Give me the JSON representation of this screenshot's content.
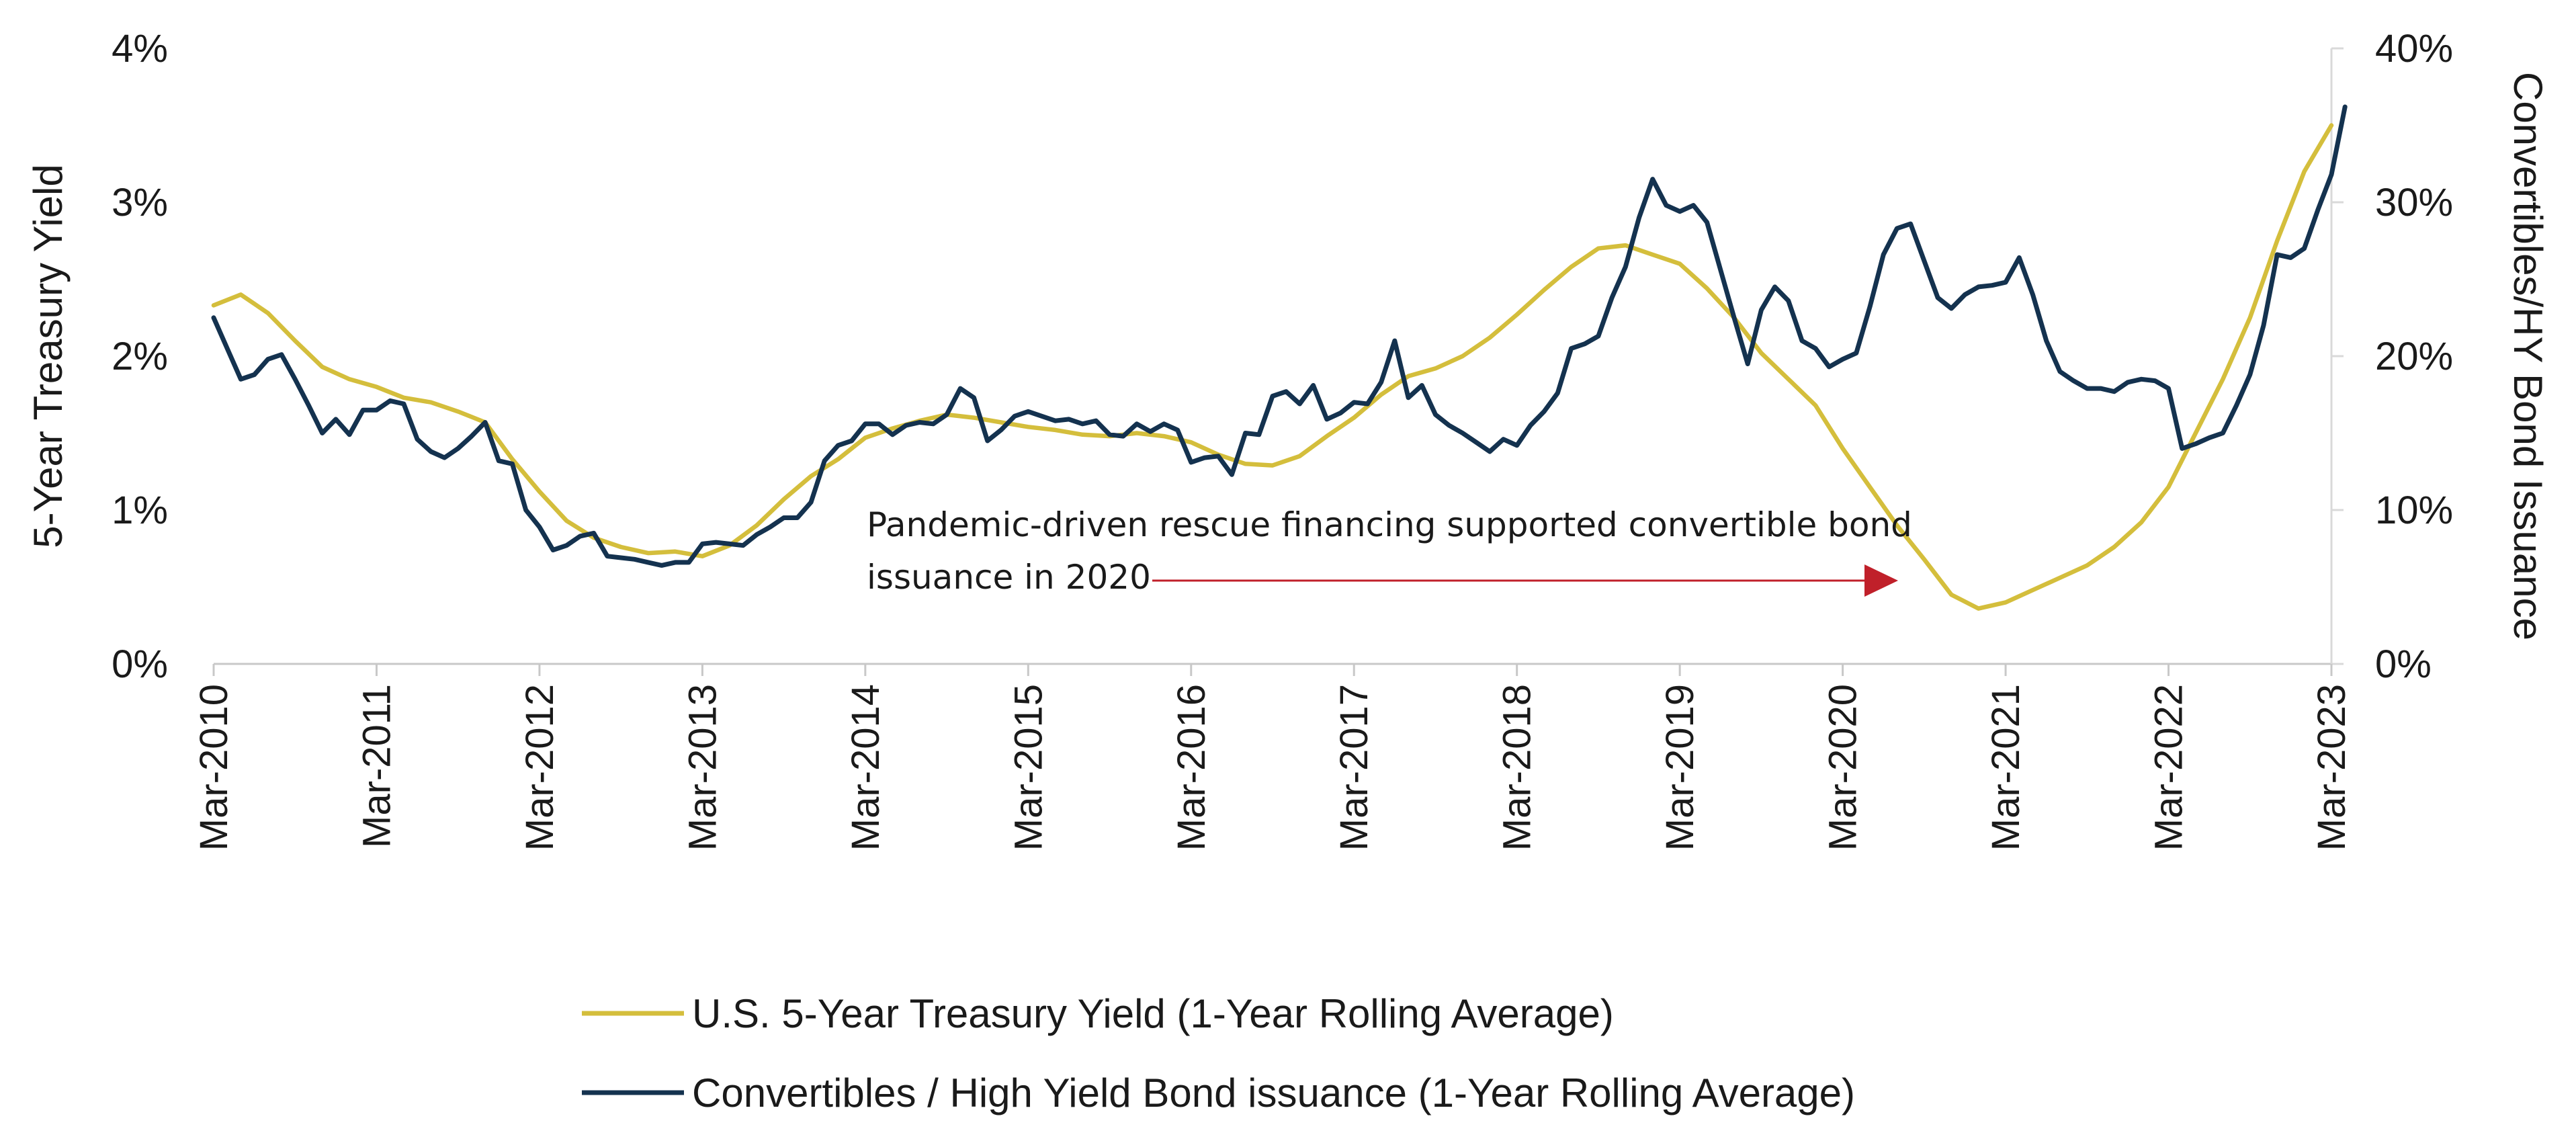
{
  "chart_data": {
    "type": "line",
    "y_left": {
      "label": "5-Year Treasury Yield",
      "min": 0,
      "max": 4,
      "ticks": [
        "0%",
        "1%",
        "2%",
        "3%",
        "4%"
      ]
    },
    "y_right": {
      "label": "Convertibles/HY Bond Issuance",
      "min": 0,
      "max": 40,
      "ticks": [
        "0%",
        "10%",
        "20%",
        "30%",
        "40%"
      ]
    },
    "x_axis": {
      "start": "Mar-2010",
      "end": "Mar-2023",
      "tick_labels": [
        "Mar-2010",
        "Mar-2011",
        "Mar-2012",
        "Mar-2013",
        "Mar-2014",
        "Mar-2015",
        "Mar-2016",
        "Mar-2017",
        "Mar-2018",
        "Mar-2019",
        "Mar-2020",
        "Mar-2021",
        "Mar-2022",
        "Mar-2023"
      ]
    },
    "series": [
      {
        "name": "U.S. 5-Year Treasury Yield (1-Year Rolling Average)",
        "axis": "left",
        "unit": "%",
        "color": "#D4BE3C",
        "points": [
          [
            "Mar-2010",
            2.33
          ],
          [
            "May-2010",
            2.4
          ],
          [
            "Jul-2010",
            2.28
          ],
          [
            "Sep-2010",
            2.1
          ],
          [
            "Nov-2010",
            1.93
          ],
          [
            "Jan-2011",
            1.85
          ],
          [
            "Mar-2011",
            1.8
          ],
          [
            "May-2011",
            1.73
          ],
          [
            "Jul-2011",
            1.7
          ],
          [
            "Sep-2011",
            1.64
          ],
          [
            "Nov-2011",
            1.57
          ],
          [
            "Jan-2012",
            1.33
          ],
          [
            "Mar-2012",
            1.12
          ],
          [
            "May-2012",
            0.93
          ],
          [
            "Jul-2012",
            0.82
          ],
          [
            "Sep-2012",
            0.76
          ],
          [
            "Nov-2012",
            0.72
          ],
          [
            "Jan-2013",
            0.73
          ],
          [
            "Mar-2013",
            0.7
          ],
          [
            "May-2013",
            0.77
          ],
          [
            "Jul-2013",
            0.9
          ],
          [
            "Sep-2013",
            1.07
          ],
          [
            "Nov-2013",
            1.22
          ],
          [
            "Jan-2014",
            1.33
          ],
          [
            "Mar-2014",
            1.47
          ],
          [
            "May-2014",
            1.53
          ],
          [
            "Jul-2014",
            1.58
          ],
          [
            "Sep-2014",
            1.62
          ],
          [
            "Nov-2014",
            1.6
          ],
          [
            "Jan-2015",
            1.57
          ],
          [
            "Mar-2015",
            1.54
          ],
          [
            "May-2015",
            1.52
          ],
          [
            "Jul-2015",
            1.49
          ],
          [
            "Sep-2015",
            1.48
          ],
          [
            "Nov-2015",
            1.5
          ],
          [
            "Jan-2016",
            1.48
          ],
          [
            "Mar-2016",
            1.44
          ],
          [
            "May-2016",
            1.36
          ],
          [
            "Jul-2016",
            1.3
          ],
          [
            "Sep-2016",
            1.29
          ],
          [
            "Nov-2016",
            1.35
          ],
          [
            "Jan-2017",
            1.48
          ],
          [
            "Mar-2017",
            1.6
          ],
          [
            "May-2017",
            1.75
          ],
          [
            "Jul-2017",
            1.87
          ],
          [
            "Sep-2017",
            1.92
          ],
          [
            "Nov-2017",
            2.0
          ],
          [
            "Jan-2018",
            2.12
          ],
          [
            "Mar-2018",
            2.27
          ],
          [
            "May-2018",
            2.43
          ],
          [
            "Jul-2018",
            2.58
          ],
          [
            "Sep-2018",
            2.7
          ],
          [
            "Nov-2018",
            2.72
          ],
          [
            "Jan-2019",
            2.66
          ],
          [
            "Mar-2019",
            2.6
          ],
          [
            "May-2019",
            2.44
          ],
          [
            "Jul-2019",
            2.25
          ],
          [
            "Sep-2019",
            2.02
          ],
          [
            "Nov-2019",
            1.85
          ],
          [
            "Jan-2020",
            1.68
          ],
          [
            "Mar-2020",
            1.4
          ],
          [
            "May-2020",
            1.15
          ],
          [
            "Jul-2020",
            0.9
          ],
          [
            "Sep-2020",
            0.68
          ],
          [
            "Nov-2020",
            0.45
          ],
          [
            "Jan-2021",
            0.36
          ],
          [
            "Mar-2021",
            0.4
          ],
          [
            "May-2021",
            0.48
          ],
          [
            "Jul-2021",
            0.56
          ],
          [
            "Sep-2021",
            0.64
          ],
          [
            "Nov-2021",
            0.76
          ],
          [
            "Jan-2022",
            0.92
          ],
          [
            "Mar-2022",
            1.15
          ],
          [
            "May-2022",
            1.5
          ],
          [
            "Jul-2022",
            1.85
          ],
          [
            "Sep-2022",
            2.25
          ],
          [
            "Nov-2022",
            2.75
          ],
          [
            "Jan-2023",
            3.2
          ],
          [
            "Mar-2023",
            3.5
          ]
        ]
      },
      {
        "name": "Convertibles / High Yield Bond issuance (1-Year Rolling Average)",
        "axis": "right",
        "unit": "%",
        "color": "#14324F",
        "points": [
          [
            "Mar-2010",
            22.5
          ],
          [
            "Apr-2010",
            20.5
          ],
          [
            "May-2010",
            18.5
          ],
          [
            "Jun-2010",
            18.8
          ],
          [
            "Jul-2010",
            19.8
          ],
          [
            "Aug-2010",
            20.1
          ],
          [
            "Sep-2010",
            18.5
          ],
          [
            "Oct-2010",
            16.8
          ],
          [
            "Nov-2010",
            15.0
          ],
          [
            "Dec-2010",
            15.9
          ],
          [
            "Jan-2011",
            14.9
          ],
          [
            "Feb-2011",
            16.5
          ],
          [
            "Mar-2011",
            16.5
          ],
          [
            "Apr-2011",
            17.1
          ],
          [
            "May-2011",
            16.9
          ],
          [
            "Jun-2011",
            14.6
          ],
          [
            "Jul-2011",
            13.8
          ],
          [
            "Aug-2011",
            13.4
          ],
          [
            "Sep-2011",
            14.0
          ],
          [
            "Oct-2011",
            14.8
          ],
          [
            "Nov-2011",
            15.7
          ],
          [
            "Dec-2011",
            13.2
          ],
          [
            "Jan-2012",
            13.0
          ],
          [
            "Feb-2012",
            10.0
          ],
          [
            "Mar-2012",
            8.9
          ],
          [
            "Apr-2012",
            7.4
          ],
          [
            "May-2012",
            7.7
          ],
          [
            "Jun-2012",
            8.3
          ],
          [
            "Jul-2012",
            8.5
          ],
          [
            "Aug-2012",
            7.0
          ],
          [
            "Sep-2012",
            6.9
          ],
          [
            "Oct-2012",
            6.8
          ],
          [
            "Nov-2012",
            6.6
          ],
          [
            "Dec-2012",
            6.4
          ],
          [
            "Jan-2013",
            6.6
          ],
          [
            "Feb-2013",
            6.6
          ],
          [
            "Mar-2013",
            7.8
          ],
          [
            "Apr-2013",
            7.9
          ],
          [
            "May-2013",
            7.8
          ],
          [
            "Jun-2013",
            7.7
          ],
          [
            "Jul-2013",
            8.4
          ],
          [
            "Aug-2013",
            8.9
          ],
          [
            "Sep-2013",
            9.5
          ],
          [
            "Oct-2013",
            9.5
          ],
          [
            "Nov-2013",
            10.5
          ],
          [
            "Dec-2013",
            13.2
          ],
          [
            "Jan-2014",
            14.2
          ],
          [
            "Feb-2014",
            14.5
          ],
          [
            "Mar-2014",
            15.6
          ],
          [
            "Apr-2014",
            15.6
          ],
          [
            "May-2014",
            14.9
          ],
          [
            "Jun-2014",
            15.5
          ],
          [
            "Jul-2014",
            15.7
          ],
          [
            "Aug-2014",
            15.6
          ],
          [
            "Sep-2014",
            16.2
          ],
          [
            "Oct-2014",
            17.9
          ],
          [
            "Nov-2014",
            17.3
          ],
          [
            "Dec-2014",
            14.5
          ],
          [
            "Jan-2015",
            15.2
          ],
          [
            "Feb-2015",
            16.1
          ],
          [
            "Mar-2015",
            16.4
          ],
          [
            "Apr-2015",
            16.1
          ],
          [
            "May-2015",
            15.8
          ],
          [
            "Jun-2015",
            15.9
          ],
          [
            "Jul-2015",
            15.6
          ],
          [
            "Aug-2015",
            15.8
          ],
          [
            "Sep-2015",
            14.9
          ],
          [
            "Oct-2015",
            14.8
          ],
          [
            "Nov-2015",
            15.6
          ],
          [
            "Dec-2015",
            15.1
          ],
          [
            "Jan-2016",
            15.6
          ],
          [
            "Feb-2016",
            15.2
          ],
          [
            "Mar-2016",
            13.1
          ],
          [
            "Apr-2016",
            13.4
          ],
          [
            "May-2016",
            13.5
          ],
          [
            "Jun-2016",
            12.3
          ],
          [
            "Jul-2016",
            15.0
          ],
          [
            "Aug-2016",
            14.9
          ],
          [
            "Sep-2016",
            17.4
          ],
          [
            "Oct-2016",
            17.7
          ],
          [
            "Nov-2016",
            16.9
          ],
          [
            "Dec-2016",
            18.1
          ],
          [
            "Jan-2017",
            15.9
          ],
          [
            "Feb-2017",
            16.3
          ],
          [
            "Mar-2017",
            17.0
          ],
          [
            "Apr-2017",
            16.9
          ],
          [
            "May-2017",
            18.3
          ],
          [
            "Jun-2017",
            21.0
          ],
          [
            "Jul-2017",
            17.3
          ],
          [
            "Aug-2017",
            18.1
          ],
          [
            "Sep-2017",
            16.2
          ],
          [
            "Oct-2017",
            15.5
          ],
          [
            "Nov-2017",
            15.0
          ],
          [
            "Dec-2017",
            14.4
          ],
          [
            "Jan-2018",
            13.8
          ],
          [
            "Feb-2018",
            14.6
          ],
          [
            "Mar-2018",
            14.2
          ],
          [
            "Apr-2018",
            15.5
          ],
          [
            "May-2018",
            16.4
          ],
          [
            "Jun-2018",
            17.6
          ],
          [
            "Jul-2018",
            20.5
          ],
          [
            "Aug-2018",
            20.8
          ],
          [
            "Sep-2018",
            21.3
          ],
          [
            "Oct-2018",
            23.8
          ],
          [
            "Nov-2018",
            25.8
          ],
          [
            "Dec-2018",
            29.0
          ],
          [
            "Jan-2019",
            31.5
          ],
          [
            "Feb-2019",
            29.8
          ],
          [
            "Mar-2019",
            29.4
          ],
          [
            "Apr-2019",
            29.8
          ],
          [
            "May-2019",
            28.7
          ],
          [
            "Jun-2019",
            25.6
          ],
          [
            "Jul-2019",
            22.5
          ],
          [
            "Aug-2019",
            19.5
          ],
          [
            "Sep-2019",
            23.0
          ],
          [
            "Oct-2019",
            24.5
          ],
          [
            "Nov-2019",
            23.6
          ],
          [
            "Dec-2019",
            21.0
          ],
          [
            "Jan-2020",
            20.5
          ],
          [
            "Feb-2020",
            19.3
          ],
          [
            "Mar-2020",
            19.8
          ],
          [
            "Apr-2020",
            20.2
          ],
          [
            "May-2020",
            23.2
          ],
          [
            "Jun-2020",
            26.6
          ],
          [
            "Jul-2020",
            28.3
          ],
          [
            "Aug-2020",
            28.6
          ],
          [
            "Sep-2020",
            26.2
          ],
          [
            "Oct-2020",
            23.8
          ],
          [
            "Nov-2020",
            23.1
          ],
          [
            "Dec-2020",
            24.0
          ],
          [
            "Jan-2021",
            24.5
          ],
          [
            "Feb-2021",
            24.6
          ],
          [
            "Mar-2021",
            24.8
          ],
          [
            "Apr-2021",
            26.4
          ],
          [
            "May-2021",
            24.0
          ],
          [
            "Jun-2021",
            21.0
          ],
          [
            "Jul-2021",
            19.0
          ],
          [
            "Aug-2021",
            18.4
          ],
          [
            "Sep-2021",
            17.9
          ],
          [
            "Oct-2021",
            17.9
          ],
          [
            "Nov-2021",
            17.7
          ],
          [
            "Dec-2021",
            18.3
          ],
          [
            "Jan-2022",
            18.5
          ],
          [
            "Feb-2022",
            18.4
          ],
          [
            "Mar-2022",
            17.9
          ],
          [
            "Apr-2022",
            14.0
          ],
          [
            "May-2022",
            14.3
          ],
          [
            "Jun-2022",
            14.7
          ],
          [
            "Jul-2022",
            15.0
          ],
          [
            "Aug-2022",
            16.8
          ],
          [
            "Sep-2022",
            18.8
          ],
          [
            "Oct-2022",
            22.0
          ],
          [
            "Nov-2022",
            26.6
          ],
          [
            "Dec-2022",
            26.4
          ],
          [
            "Jan-2023",
            27.0
          ],
          [
            "Feb-2023",
            29.5
          ],
          [
            "Mar-2023",
            31.8
          ],
          [
            "Apr-2023",
            36.2
          ]
        ]
      }
    ],
    "annotation": {
      "lines": [
        "Pandemic-driven rescue financing supported convertible bond",
        "issuance in 2020"
      ],
      "arrow_color": "#C0202A"
    },
    "legend_position": "bottom-center",
    "grid": false
  }
}
